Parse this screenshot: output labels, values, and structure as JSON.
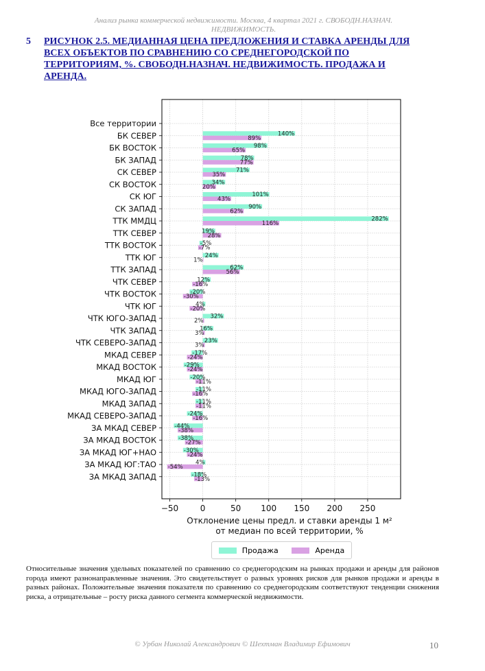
{
  "header": {
    "line1": "Анализ рынка коммерческой недвижимости.   Москва,  4 квартал 2021 г.   СВОБОДН.НАЗНАЧ.",
    "line2": "НЕДВИЖИМОСТЬ."
  },
  "figure": {
    "number": "5",
    "title": "Рисунок 2.5. Медианная цена предложения и ставка аренды для всех объектов по сравнению со среднегородской по территориям, %. СВОБОДН.НАЗНАЧ. НЕДВИЖИМОСТЬ. Продажа и аренда."
  },
  "colors": {
    "sale": "#8ff5d6",
    "rent": "#d9a1e3",
    "title": "#1a1a9c"
  },
  "chart_data": {
    "type": "bar",
    "orientation": "horizontal",
    "categories": [
      "Все территории",
      "БК СЕВЕР",
      "БК ВОСТОК",
      "БК ЗАПАД",
      "СК СЕВЕР",
      "СК ВОСТОК",
      "СК ЮГ",
      "СК ЗАПАД",
      "ТТК ММДЦ",
      "ТТК СЕВЕР",
      "ТТК ВОСТОК",
      "ТТК ЮГ",
      "ТТК ЗАПАД",
      "ЧТК СЕВЕР",
      "ЧТК ВОСТОК",
      "ЧТК ЮГ",
      "ЧТК ЮГО-ЗАПАД",
      "ЧТК ЗАПАД",
      "ЧТК СЕВЕРО-ЗАПАД",
      "МКАД СЕВЕР",
      "МКАД ВОСТОК",
      "МКАД ЮГ",
      "МКАД ЮГО-ЗАПАД",
      "МКАД ЗАПАД",
      "МКАД СЕВЕРО-ЗАПАД",
      "ЗА МКАД СЕВЕР",
      "ЗА МКАД ВОСТОК",
      "ЗА МКАД ЮГ+НАО",
      "ЗА МКАД ЮГ:ТАО",
      "ЗА МКАД ЗАПАД"
    ],
    "series": [
      {
        "name": "Продажа",
        "values": [
          null,
          140,
          98,
          78,
          71,
          34,
          101,
          90,
          282,
          19,
          -5,
          24,
          62,
          12,
          -20,
          4,
          32,
          16,
          23,
          -17,
          -29,
          -20,
          -11,
          -11,
          -24,
          -44,
          -38,
          -30,
          4,
          -18
        ],
        "labels": [
          "",
          "140%",
          "98%",
          "78%",
          "71%",
          "34%",
          "101%",
          "90%",
          "282%",
          "19%",
          "-5%",
          "24%",
          "62%",
          "12%",
          "-20%",
          "4%",
          "32%",
          "16%",
          "23%",
          "-17%",
          "-29%",
          "-20%",
          "-11%",
          "-11%",
          "-24%",
          "-44%",
          "-38%",
          "-30%",
          "4%",
          "-18%"
        ]
      },
      {
        "name": "Аренда",
        "values": [
          null,
          89,
          65,
          77,
          35,
          20,
          43,
          62,
          116,
          28,
          -7,
          1,
          56,
          -16,
          -30,
          -20,
          2,
          3,
          3,
          -24,
          -24,
          -11,
          -16,
          -11,
          -16,
          -38,
          -27,
          -24,
          -54,
          -13
        ],
        "labels": [
          "",
          "89%",
          "65%",
          "77%",
          "35%",
          "20%",
          "43%",
          "62%",
          "116%",
          "28%",
          "-7%",
          "1%",
          "56%",
          "-16%",
          "-30%",
          "-20%",
          "2%",
          "3%",
          "3%",
          "-24%",
          "-24%",
          "-11%",
          "-16%",
          "-11%",
          "-16%",
          "-38%",
          "-27%",
          "-24%",
          "-54%",
          "-13%"
        ]
      }
    ],
    "xticks": [
      "−50",
      "0",
      "50",
      "100",
      "150",
      "200",
      "250"
    ],
    "xtick_values": [
      -50,
      0,
      50,
      100,
      150,
      200,
      250
    ],
    "xlim": [
      -62,
      300
    ],
    "xlabel_line1": "Отклонение цены предл. и ставки аренды 1 м²",
    "xlabel_line2": "от медиан по всей территории, %",
    "grid": true,
    "legend_position": "bottom-center"
  },
  "legend": {
    "sale": "Продажа",
    "rent": "Аренда"
  },
  "paragraph": "Относительные значения удельных показателей по сравнению со среднегородским на рынках продажи и аренды для районов города имеют разнонаправленные значения. Это свидетельствует о разных уровнях рисков для рынков продажи и аренды в разных районах. Положительные значения показателя по сравнению со среднегородским соответствуют тенденции снижения риска, а отрицательные – росту риска данного сегмента коммерческой недвижимости.",
  "footer": "© Урбан Николай Александрович  © Шехтман Владимир Ефимович",
  "page_number": "10"
}
